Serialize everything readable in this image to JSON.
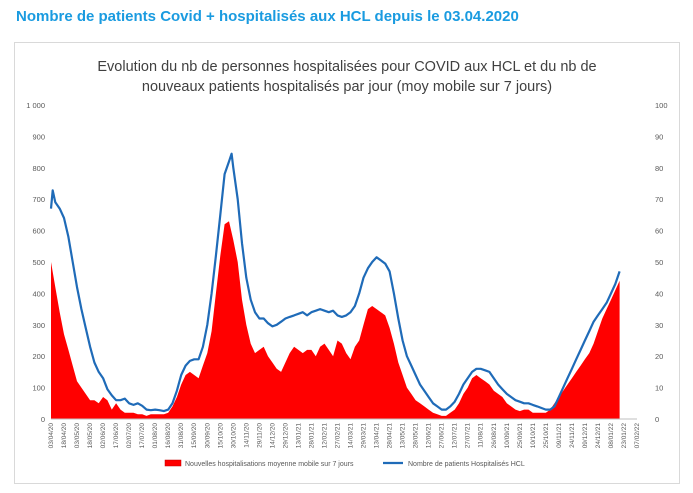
{
  "page": {
    "header": "Nombre de patients Covid + hospitalisés aux HCL depuis le 03.04.2020"
  },
  "chart_data": {
    "type": "area",
    "title_lines": [
      "Evolution du nb de personnes hospitalisées pour COVID aux HCL et du nb de",
      "nouveaux patients hospitalisés par jour (moy mobile sur 7 jours)"
    ],
    "x_tick_labels": [
      "03/04/20",
      "18/04/20",
      "03/05/20",
      "18/05/20",
      "02/06/20",
      "17/06/20",
      "02/07/20",
      "17/07/20",
      "01/08/20",
      "16/08/20",
      "31/08/20",
      "15/09/20",
      "30/09/20",
      "15/10/20",
      "30/10/20",
      "14/11/20",
      "29/11/20",
      "14/12/20",
      "29/12/20",
      "13/01/21",
      "28/01/21",
      "12/02/21",
      "27/02/21",
      "14/03/21",
      "29/03/21",
      "13/04/21",
      "28/04/21",
      "13/05/21",
      "28/05/21",
      "12/06/21",
      "27/06/21",
      "12/07/21",
      "27/07/21",
      "11/08/21",
      "26/08/21",
      "10/09/21",
      "25/09/21",
      "10/10/21",
      "25/10/21",
      "09/11/21",
      "24/11/21",
      "09/12/21",
      "24/12/21",
      "08/01/22",
      "23/01/22",
      "07/02/22"
    ],
    "y_left": {
      "min": 0,
      "max": 1000,
      "ticks": [
        0,
        100,
        200,
        300,
        400,
        500,
        600,
        700,
        800,
        900,
        1000
      ],
      "tick_labels": [
        "0",
        "100",
        "200",
        "300",
        "400",
        "500",
        "600",
        "700",
        "800",
        "900",
        "1 000"
      ]
    },
    "y_right": {
      "min": 0,
      "max": 100,
      "ticks": [
        0,
        10,
        20,
        30,
        40,
        50,
        60,
        70,
        80,
        90,
        100
      ]
    },
    "series": [
      {
        "name": "Nouvelles hospitalisations moyenne mobile sur 7 jours",
        "kind": "area",
        "axis": "right",
        "color": "#ff0000",
        "points": [
          [
            "03/04/20",
            50
          ],
          [
            "08/04/20",
            42
          ],
          [
            "13/04/20",
            34
          ],
          [
            "18/04/20",
            27
          ],
          [
            "23/04/20",
            22
          ],
          [
            "28/04/20",
            17
          ],
          [
            "03/05/20",
            12
          ],
          [
            "08/05/20",
            10
          ],
          [
            "13/05/20",
            8
          ],
          [
            "18/05/20",
            6
          ],
          [
            "23/05/20",
            6
          ],
          [
            "28/05/20",
            5
          ],
          [
            "02/06/20",
            7
          ],
          [
            "07/06/20",
            6
          ],
          [
            "12/06/20",
            3
          ],
          [
            "17/06/20",
            5
          ],
          [
            "22/06/20",
            3
          ],
          [
            "27/06/20",
            2
          ],
          [
            "02/07/20",
            2
          ],
          [
            "07/07/20",
            2
          ],
          [
            "12/07/20",
            1.5
          ],
          [
            "17/07/20",
            1.5
          ],
          [
            "22/07/20",
            1
          ],
          [
            "27/07/20",
            1.5
          ],
          [
            "01/08/20",
            1.5
          ],
          [
            "06/08/20",
            1.5
          ],
          [
            "11/08/20",
            1.5
          ],
          [
            "16/08/20",
            2
          ],
          [
            "21/08/20",
            4
          ],
          [
            "26/08/20",
            7
          ],
          [
            "31/08/20",
            11
          ],
          [
            "05/09/20",
            14
          ],
          [
            "10/09/20",
            15
          ],
          [
            "15/09/20",
            14
          ],
          [
            "20/09/20",
            13
          ],
          [
            "25/09/20",
            17
          ],
          [
            "30/09/20",
            21
          ],
          [
            "05/10/20",
            28
          ],
          [
            "10/10/20",
            40
          ],
          [
            "15/10/20",
            52
          ],
          [
            "20/10/20",
            62
          ],
          [
            "25/10/20",
            63
          ],
          [
            "30/10/20",
            57
          ],
          [
            "04/11/20",
            50
          ],
          [
            "09/11/20",
            38
          ],
          [
            "14/11/20",
            30
          ],
          [
            "19/11/20",
            24
          ],
          [
            "24/11/20",
            21
          ],
          [
            "29/11/20",
            22
          ],
          [
            "04/12/20",
            23
          ],
          [
            "09/12/20",
            20
          ],
          [
            "14/12/20",
            18
          ],
          [
            "19/12/20",
            16
          ],
          [
            "24/12/20",
            15
          ],
          [
            "29/12/20",
            18
          ],
          [
            "03/01/21",
            21
          ],
          [
            "08/01/21",
            23
          ],
          [
            "13/01/21",
            22
          ],
          [
            "18/01/21",
            21
          ],
          [
            "23/01/21",
            22
          ],
          [
            "28/01/21",
            22
          ],
          [
            "02/02/21",
            20
          ],
          [
            "07/02/21",
            23
          ],
          [
            "12/02/21",
            24
          ],
          [
            "17/02/21",
            22
          ],
          [
            "22/02/21",
            20
          ],
          [
            "27/02/21",
            25
          ],
          [
            "04/03/21",
            24
          ],
          [
            "09/03/21",
            21
          ],
          [
            "14/03/21",
            19
          ],
          [
            "19/03/21",
            23
          ],
          [
            "24/03/21",
            25
          ],
          [
            "29/03/21",
            30
          ],
          [
            "03/04/21",
            35
          ],
          [
            "08/04/21",
            36
          ],
          [
            "13/04/21",
            35
          ],
          [
            "18/04/21",
            34
          ],
          [
            "23/04/21",
            33
          ],
          [
            "28/04/21",
            29
          ],
          [
            "03/05/21",
            24
          ],
          [
            "08/05/21",
            18
          ],
          [
            "13/05/21",
            14
          ],
          [
            "18/05/21",
            10
          ],
          [
            "23/05/21",
            8
          ],
          [
            "28/05/21",
            6
          ],
          [
            "02/06/21",
            5
          ],
          [
            "07/06/21",
            4
          ],
          [
            "12/06/21",
            3
          ],
          [
            "17/06/21",
            2
          ],
          [
            "22/06/21",
            1.5
          ],
          [
            "27/06/21",
            1
          ],
          [
            "02/07/21",
            1
          ],
          [
            "07/07/21",
            2
          ],
          [
            "12/07/21",
            3
          ],
          [
            "17/07/21",
            5
          ],
          [
            "22/07/21",
            8
          ],
          [
            "27/07/21",
            10
          ],
          [
            "01/08/21",
            13
          ],
          [
            "06/08/21",
            14
          ],
          [
            "11/08/21",
            13
          ],
          [
            "16/08/21",
            12
          ],
          [
            "21/08/21",
            11
          ],
          [
            "26/08/21",
            9
          ],
          [
            "31/08/21",
            8
          ],
          [
            "05/09/21",
            7
          ],
          [
            "10/09/21",
            5
          ],
          [
            "15/09/21",
            4
          ],
          [
            "20/09/21",
            3
          ],
          [
            "25/09/21",
            2.5
          ],
          [
            "30/09/21",
            3
          ],
          [
            "05/10/21",
            3
          ],
          [
            "10/10/21",
            2
          ],
          [
            "15/10/21",
            2
          ],
          [
            "20/10/21",
            2
          ],
          [
            "25/10/21",
            2
          ],
          [
            "30/10/21",
            3
          ],
          [
            "04/11/21",
            5
          ],
          [
            "09/11/21",
            7
          ],
          [
            "14/11/21",
            9
          ],
          [
            "19/11/21",
            11
          ],
          [
            "24/11/21",
            13
          ],
          [
            "29/11/21",
            15
          ],
          [
            "04/12/21",
            17
          ],
          [
            "09/12/21",
            19
          ],
          [
            "14/12/21",
            21
          ],
          [
            "19/12/21",
            24
          ],
          [
            "24/12/21",
            28
          ],
          [
            "29/12/21",
            32
          ],
          [
            "03/01/22",
            35
          ],
          [
            "08/01/22",
            38
          ],
          [
            "13/01/22",
            41
          ],
          [
            "18/01/22",
            44
          ]
        ]
      },
      {
        "name": "Nombre de patients Hospitalisés HCL",
        "kind": "line",
        "axis": "left",
        "color": "#1f6bb8",
        "points": [
          [
            "03/04/20",
            670
          ],
          [
            "05/04/20",
            728
          ],
          [
            "08/04/20",
            690
          ],
          [
            "13/04/20",
            670
          ],
          [
            "18/04/20",
            640
          ],
          [
            "23/04/20",
            580
          ],
          [
            "28/04/20",
            500
          ],
          [
            "03/05/20",
            420
          ],
          [
            "08/05/20",
            350
          ],
          [
            "13/05/20",
            290
          ],
          [
            "18/05/20",
            230
          ],
          [
            "23/05/20",
            180
          ],
          [
            "28/05/20",
            150
          ],
          [
            "02/06/20",
            130
          ],
          [
            "07/06/20",
            95
          ],
          [
            "12/06/20",
            75
          ],
          [
            "17/06/20",
            60
          ],
          [
            "22/06/20",
            60
          ],
          [
            "27/06/20",
            65
          ],
          [
            "02/07/20",
            50
          ],
          [
            "07/07/20",
            45
          ],
          [
            "12/07/20",
            50
          ],
          [
            "17/07/20",
            42
          ],
          [
            "22/07/20",
            30
          ],
          [
            "27/07/20",
            28
          ],
          [
            "01/08/20",
            30
          ],
          [
            "06/08/20",
            28
          ],
          [
            "11/08/20",
            25
          ],
          [
            "16/08/20",
            30
          ],
          [
            "21/08/20",
            50
          ],
          [
            "26/08/20",
            90
          ],
          [
            "31/08/20",
            140
          ],
          [
            "05/09/20",
            170
          ],
          [
            "10/09/20",
            185
          ],
          [
            "15/09/20",
            190
          ],
          [
            "20/09/20",
            190
          ],
          [
            "25/09/20",
            230
          ],
          [
            "30/09/20",
            300
          ],
          [
            "05/10/20",
            400
          ],
          [
            "10/10/20",
            520
          ],
          [
            "15/10/20",
            650
          ],
          [
            "20/10/20",
            780
          ],
          [
            "25/10/20",
            820
          ],
          [
            "28/10/20",
            845
          ],
          [
            "30/10/20",
            800
          ],
          [
            "04/11/20",
            700
          ],
          [
            "09/11/20",
            560
          ],
          [
            "14/11/20",
            450
          ],
          [
            "19/11/20",
            380
          ],
          [
            "24/11/20",
            340
          ],
          [
            "29/11/20",
            320
          ],
          [
            "04/12/20",
            320
          ],
          [
            "09/12/20",
            305
          ],
          [
            "14/12/20",
            295
          ],
          [
            "19/12/20",
            300
          ],
          [
            "24/12/20",
            310
          ],
          [
            "29/12/20",
            320
          ],
          [
            "03/01/21",
            325
          ],
          [
            "08/01/21",
            330
          ],
          [
            "13/01/21",
            335
          ],
          [
            "18/01/21",
            340
          ],
          [
            "23/01/21",
            330
          ],
          [
            "28/01/21",
            340
          ],
          [
            "02/02/21",
            345
          ],
          [
            "07/02/21",
            350
          ],
          [
            "12/02/21",
            345
          ],
          [
            "17/02/21",
            340
          ],
          [
            "22/02/21",
            345
          ],
          [
            "27/02/21",
            330
          ],
          [
            "04/03/21",
            325
          ],
          [
            "09/03/21",
            330
          ],
          [
            "14/03/21",
            340
          ],
          [
            "19/03/21",
            360
          ],
          [
            "24/03/21",
            400
          ],
          [
            "29/03/21",
            450
          ],
          [
            "03/04/21",
            480
          ],
          [
            "08/04/21",
            500
          ],
          [
            "13/04/21",
            515
          ],
          [
            "18/04/21",
            505
          ],
          [
            "23/04/21",
            495
          ],
          [
            "28/04/21",
            470
          ],
          [
            "03/05/21",
            400
          ],
          [
            "08/05/21",
            320
          ],
          [
            "13/05/21",
            250
          ],
          [
            "18/05/21",
            200
          ],
          [
            "23/05/21",
            170
          ],
          [
            "28/05/21",
            140
          ],
          [
            "02/06/21",
            110
          ],
          [
            "07/06/21",
            90
          ],
          [
            "12/06/21",
            70
          ],
          [
            "17/06/21",
            50
          ],
          [
            "22/06/21",
            40
          ],
          [
            "27/06/21",
            30
          ],
          [
            "02/07/21",
            30
          ],
          [
            "07/07/21",
            40
          ],
          [
            "12/07/21",
            55
          ],
          [
            "17/07/21",
            80
          ],
          [
            "22/07/21",
            110
          ],
          [
            "27/07/21",
            130
          ],
          [
            "01/08/21",
            150
          ],
          [
            "06/08/21",
            160
          ],
          [
            "11/08/21",
            160
          ],
          [
            "16/08/21",
            155
          ],
          [
            "21/08/21",
            150
          ],
          [
            "26/08/21",
            130
          ],
          [
            "31/08/21",
            110
          ],
          [
            "05/09/21",
            95
          ],
          [
            "10/09/21",
            80
          ],
          [
            "15/09/21",
            70
          ],
          [
            "20/09/21",
            60
          ],
          [
            "25/09/21",
            55
          ],
          [
            "30/09/21",
            50
          ],
          [
            "05/10/21",
            50
          ],
          [
            "10/10/21",
            45
          ],
          [
            "15/10/21",
            40
          ],
          [
            "20/10/21",
            35
          ],
          [
            "25/10/21",
            30
          ],
          [
            "30/10/21",
            30
          ],
          [
            "04/11/21",
            40
          ],
          [
            "09/11/21",
            70
          ],
          [
            "14/11/21",
            100
          ],
          [
            "19/11/21",
            130
          ],
          [
            "24/11/21",
            160
          ],
          [
            "29/11/21",
            190
          ],
          [
            "04/12/21",
            220
          ],
          [
            "09/12/21",
            250
          ],
          [
            "14/12/21",
            280
          ],
          [
            "19/12/21",
            310
          ],
          [
            "24/12/21",
            330
          ],
          [
            "29/12/21",
            350
          ],
          [
            "03/01/22",
            370
          ],
          [
            "08/01/22",
            400
          ],
          [
            "13/01/22",
            430
          ],
          [
            "18/01/22",
            470
          ]
        ]
      }
    ],
    "legend": {
      "position": "bottom"
    },
    "grid": false
  }
}
